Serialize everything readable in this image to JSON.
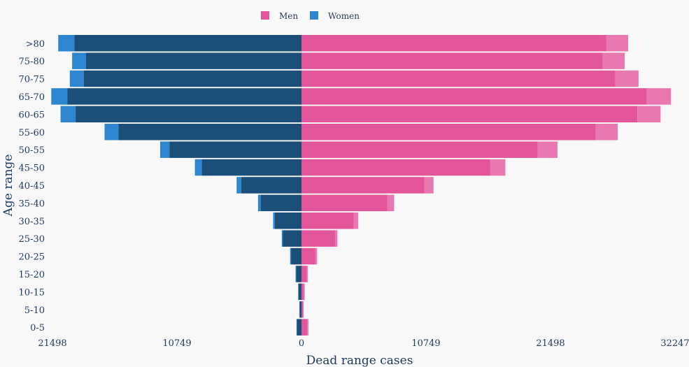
{
  "chart_data": {
    "type": "bar",
    "orientation": "horizontal",
    "layout": "population-pyramid",
    "categories": [
      ">80",
      "75-80",
      "70-75",
      "65-70",
      "60-65",
      "55-60",
      "50-55",
      "45-50",
      "40-45",
      "35-40",
      "30-35",
      "25-30",
      "20-25",
      "15-20",
      "10-15",
      "5-10",
      "0-5"
    ],
    "series": [
      {
        "name": "Men",
        "side": "right",
        "color": "#e2559a",
        "values": [
          26300,
          26000,
          27100,
          29800,
          29000,
          25400,
          20400,
          16300,
          10600,
          7400,
          4500,
          2900,
          1200,
          450,
          200,
          120,
          500
        ],
        "extra_values": [
          1900,
          1900,
          2000,
          2100,
          2000,
          1900,
          1700,
          1300,
          800,
          600,
          400,
          200,
          150,
          100,
          80,
          60,
          100
        ]
      },
      {
        "name": "Women",
        "side": "left",
        "color": "#1b4f7a",
        "values": [
          19600,
          18600,
          18800,
          20200,
          19500,
          15800,
          11400,
          8600,
          5200,
          3500,
          2300,
          1600,
          900,
          450,
          250,
          150,
          400
        ],
        "extra_values": [
          1400,
          1200,
          1200,
          1400,
          1300,
          1200,
          800,
          600,
          400,
          250,
          150,
          100,
          80,
          60,
          40,
          30,
          30
        ]
      }
    ],
    "xticks": [
      "21498",
      "10749",
      "0",
      "10749",
      "21498",
      "32247"
    ],
    "xlabel": "Dead range cases",
    "ylabel": "Age range",
    "xlim": [
      -21498,
      32247
    ],
    "legend_position": "top-center",
    "colors": {
      "men": "#e2559a",
      "men_extra": "#ea78b0",
      "women": "#1b4f7a",
      "women_extra": "#2f86d0"
    }
  }
}
